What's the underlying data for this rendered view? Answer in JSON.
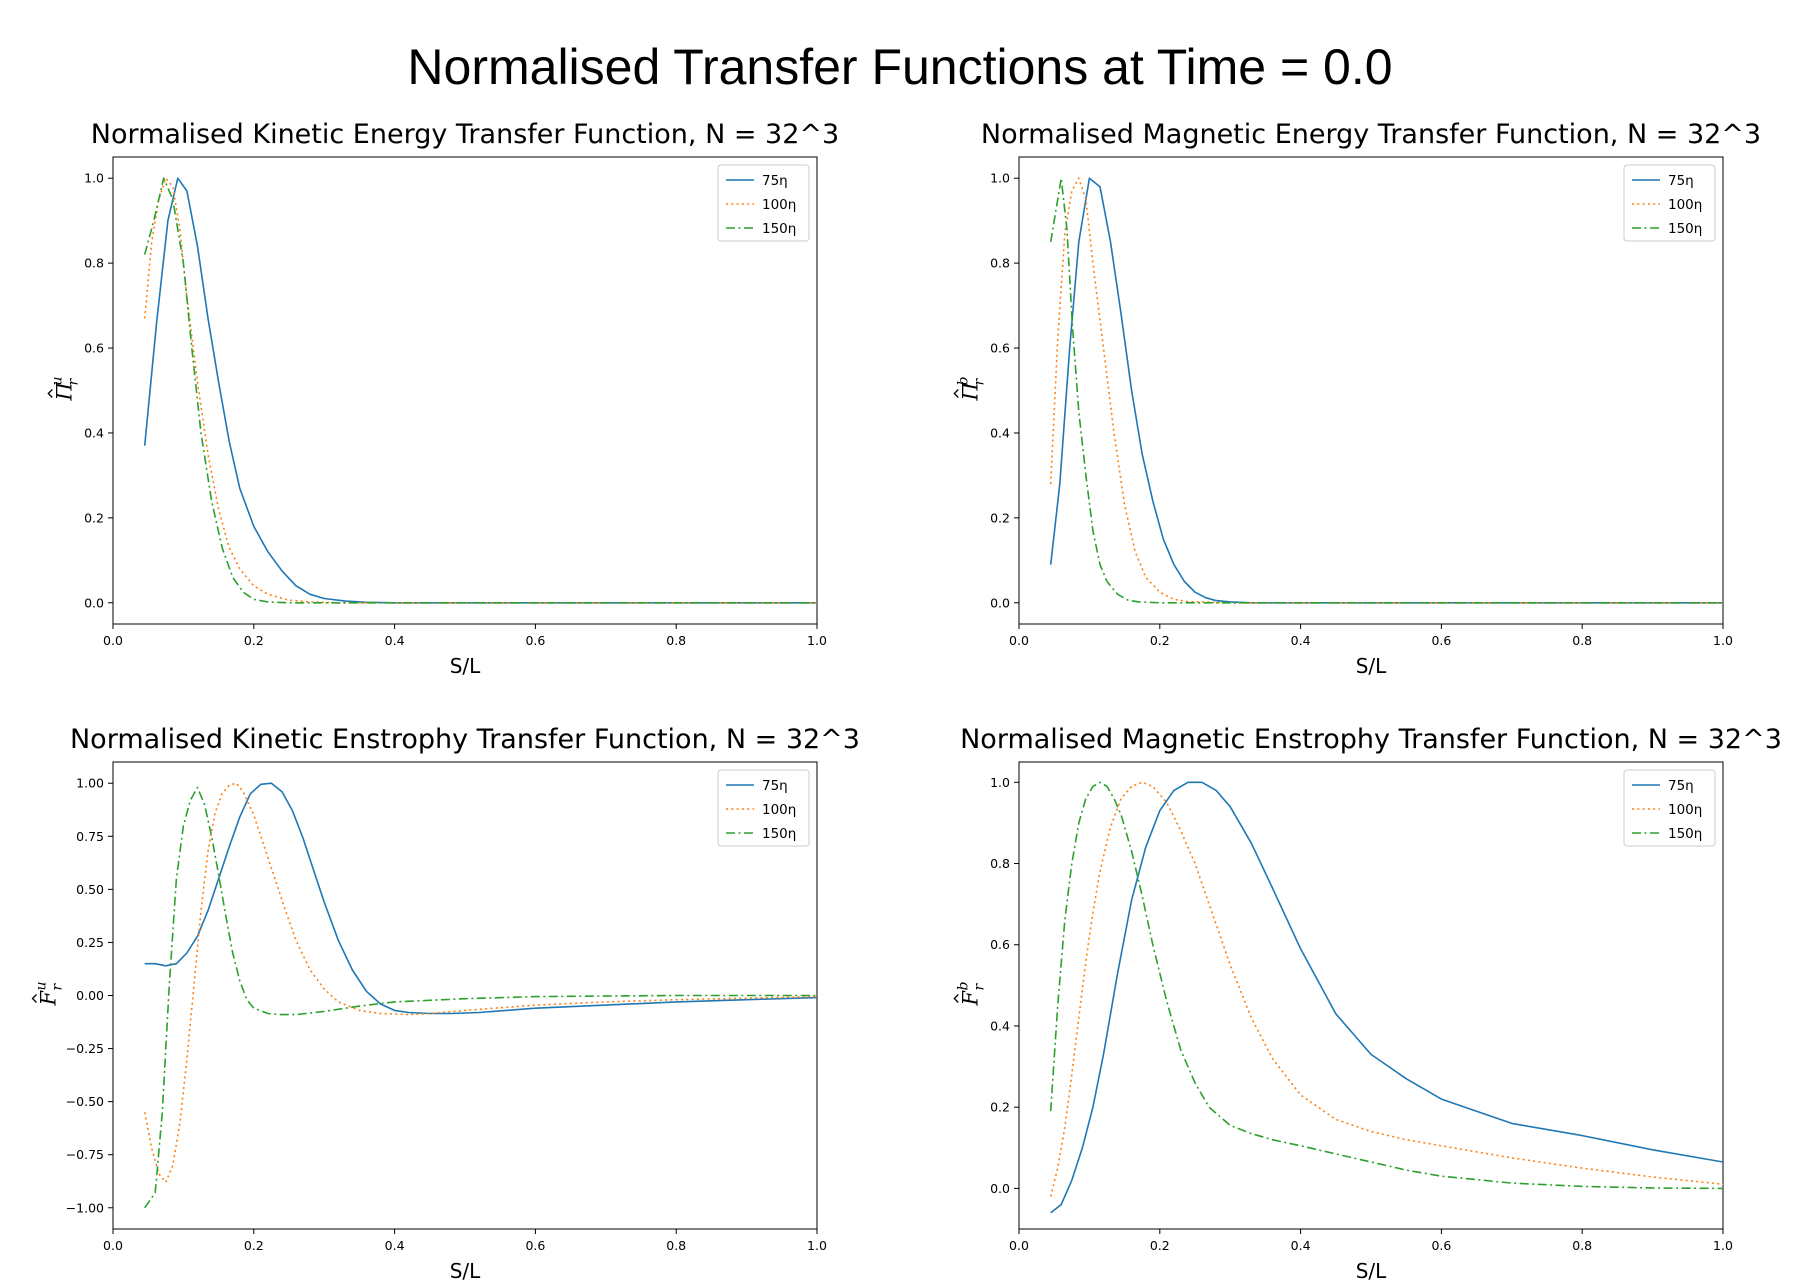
{
  "suptitle": "Normalised Transfer Functions at Time = 0.0",
  "colors": {
    "75η": "#1f77b4",
    "100η": "#ff7f0e",
    "150η": "#2ca02c"
  },
  "chart_data": [
    {
      "type": "line",
      "title": "Normalised Kinetic Energy Transfer Function, N = 32^3",
      "xlabel": "S/L",
      "ylabel": {
        "base": "Π",
        "hat": true,
        "sub": "r",
        "sup": "u"
      },
      "xlim": [
        0.0,
        1.0
      ],
      "ylim": [
        -0.05,
        1.05
      ],
      "xticks": [
        "0.0",
        "0.2",
        "0.4",
        "0.6",
        "0.8",
        "1.0"
      ],
      "yticks": [
        "0.0",
        "0.2",
        "0.4",
        "0.6",
        "0.8",
        "1.0"
      ],
      "legend": "top-right",
      "series": [
        {
          "name": "75η",
          "style": "solid",
          "x": [
            0.045,
            0.062,
            0.078,
            0.092,
            0.105,
            0.12,
            0.135,
            0.15,
            0.165,
            0.18,
            0.2,
            0.22,
            0.24,
            0.26,
            0.28,
            0.3,
            0.33,
            0.36,
            0.4,
            0.5,
            0.6,
            0.8,
            1.0
          ],
          "y": [
            0.37,
            0.66,
            0.9,
            1.0,
            0.97,
            0.84,
            0.67,
            0.52,
            0.38,
            0.27,
            0.18,
            0.12,
            0.075,
            0.04,
            0.02,
            0.01,
            0.004,
            0.001,
            0.0,
            0.0,
            0.0,
            0.0,
            0.0
          ]
        },
        {
          "name": "100η",
          "style": "dotted",
          "x": [
            0.045,
            0.055,
            0.065,
            0.075,
            0.085,
            0.095,
            0.105,
            0.12,
            0.135,
            0.15,
            0.165,
            0.18,
            0.2,
            0.22,
            0.25,
            0.28,
            0.32,
            0.4,
            0.6,
            1.0
          ],
          "y": [
            0.67,
            0.85,
            0.95,
            1.0,
            0.98,
            0.88,
            0.72,
            0.52,
            0.35,
            0.22,
            0.13,
            0.08,
            0.04,
            0.02,
            0.006,
            0.002,
            0.0,
            0.0,
            0.0,
            0.0
          ]
        },
        {
          "name": "150η",
          "style": "dashdot",
          "x": [
            0.045,
            0.058,
            0.072,
            0.085,
            0.1,
            0.112,
            0.125,
            0.14,
            0.155,
            0.17,
            0.185,
            0.2,
            0.22,
            0.25,
            0.3,
            0.4,
            0.6,
            1.0
          ],
          "y": [
            0.82,
            0.9,
            1.0,
            0.95,
            0.8,
            0.6,
            0.4,
            0.24,
            0.13,
            0.06,
            0.025,
            0.008,
            0.002,
            0.0,
            0.0,
            0.0,
            0.0,
            0.0
          ]
        }
      ]
    },
    {
      "type": "line",
      "title": "Normalised Magnetic Energy Transfer Function, N = 32^3",
      "xlabel": "S/L",
      "ylabel": {
        "base": "Π",
        "hat": true,
        "sub": "r",
        "sup": "b"
      },
      "xlim": [
        0.0,
        1.0
      ],
      "ylim": [
        -0.05,
        1.05
      ],
      "xticks": [
        "0.0",
        "0.2",
        "0.4",
        "0.6",
        "0.8",
        "1.0"
      ],
      "yticks": [
        "0.0",
        "0.2",
        "0.4",
        "0.6",
        "0.8",
        "1.0"
      ],
      "legend": "top-right",
      "series": [
        {
          "name": "75η",
          "style": "solid",
          "x": [
            0.045,
            0.058,
            0.072,
            0.085,
            0.1,
            0.115,
            0.13,
            0.145,
            0.16,
            0.175,
            0.19,
            0.205,
            0.22,
            0.235,
            0.25,
            0.265,
            0.28,
            0.3,
            0.33,
            0.4,
            0.6,
            1.0
          ],
          "y": [
            0.09,
            0.28,
            0.6,
            0.85,
            1.0,
            0.98,
            0.85,
            0.68,
            0.5,
            0.35,
            0.24,
            0.15,
            0.09,
            0.05,
            0.025,
            0.012,
            0.005,
            0.002,
            0.0,
            0.0,
            0.0,
            0.0
          ]
        },
        {
          "name": "100η",
          "style": "dotted",
          "x": [
            0.045,
            0.055,
            0.065,
            0.075,
            0.085,
            0.095,
            0.105,
            0.12,
            0.135,
            0.15,
            0.165,
            0.18,
            0.2,
            0.22,
            0.24,
            0.3,
            0.6,
            1.0
          ],
          "y": [
            0.28,
            0.62,
            0.87,
            0.97,
            1.0,
            0.95,
            0.8,
            0.6,
            0.4,
            0.23,
            0.12,
            0.06,
            0.025,
            0.008,
            0.003,
            0.0,
            0.0,
            0.0
          ]
        },
        {
          "name": "150η",
          "style": "dashdot",
          "x": [
            0.045,
            0.052,
            0.06,
            0.068,
            0.076,
            0.085,
            0.095,
            0.105,
            0.115,
            0.125,
            0.14,
            0.155,
            0.17,
            0.2,
            0.3,
            0.6,
            1.0
          ],
          "y": [
            0.85,
            0.92,
            1.0,
            0.88,
            0.65,
            0.45,
            0.3,
            0.17,
            0.09,
            0.05,
            0.02,
            0.006,
            0.002,
            0.0,
            0.0,
            0.0,
            0.0
          ]
        }
      ]
    },
    {
      "type": "line",
      "title": "Normalised Kinetic Enstrophy Transfer Function, N = 32^3",
      "xlabel": "S/L",
      "ylabel": {
        "base": "F",
        "hat": true,
        "sub": "r",
        "sup": "u"
      },
      "xlim": [
        0.0,
        1.0
      ],
      "ylim": [
        -1.1,
        1.1
      ],
      "xticks": [
        "0.0",
        "0.2",
        "0.4",
        "0.6",
        "0.8",
        "1.0"
      ],
      "yticks": [
        "−1.00",
        "−0.75",
        "−0.50",
        "−0.25",
        "0.00",
        "0.25",
        "0.50",
        "0.75",
        "1.00"
      ],
      "ytickvals": [
        -1.0,
        -0.75,
        -0.5,
        -0.25,
        0.0,
        0.25,
        0.5,
        0.75,
        1.0
      ],
      "legend": "top-right",
      "series": [
        {
          "name": "75η",
          "style": "solid",
          "x": [
            0.045,
            0.06,
            0.075,
            0.09,
            0.105,
            0.12,
            0.135,
            0.15,
            0.165,
            0.18,
            0.195,
            0.21,
            0.225,
            0.24,
            0.255,
            0.27,
            0.285,
            0.3,
            0.32,
            0.34,
            0.36,
            0.38,
            0.4,
            0.42,
            0.45,
            0.48,
            0.52,
            0.6,
            0.7,
            0.8,
            0.9,
            1.0
          ],
          "y": [
            0.15,
            0.15,
            0.14,
            0.15,
            0.2,
            0.28,
            0.4,
            0.55,
            0.7,
            0.84,
            0.95,
            0.995,
            1.0,
            0.96,
            0.87,
            0.74,
            0.59,
            0.44,
            0.26,
            0.12,
            0.02,
            -0.04,
            -0.07,
            -0.08,
            -0.085,
            -0.085,
            -0.08,
            -0.06,
            -0.045,
            -0.03,
            -0.02,
            -0.01
          ]
        },
        {
          "name": "100η",
          "style": "dotted",
          "x": [
            0.045,
            0.055,
            0.065,
            0.075,
            0.085,
            0.095,
            0.105,
            0.115,
            0.125,
            0.135,
            0.145,
            0.155,
            0.165,
            0.175,
            0.185,
            0.2,
            0.215,
            0.23,
            0.245,
            0.26,
            0.28,
            0.3,
            0.32,
            0.35,
            0.38,
            0.42,
            0.45,
            0.5,
            0.6,
            0.7,
            0.8,
            1.0
          ],
          "y": [
            -0.55,
            -0.72,
            -0.84,
            -0.88,
            -0.8,
            -0.6,
            -0.3,
            0.05,
            0.4,
            0.68,
            0.86,
            0.95,
            0.99,
            1.0,
            0.96,
            0.85,
            0.7,
            0.55,
            0.4,
            0.26,
            0.12,
            0.03,
            -0.03,
            -0.07,
            -0.085,
            -0.09,
            -0.085,
            -0.07,
            -0.045,
            -0.03,
            -0.02,
            -0.005
          ]
        },
        {
          "name": "150η",
          "style": "dashdot",
          "x": [
            0.045,
            0.06,
            0.07,
            0.08,
            0.09,
            0.1,
            0.11,
            0.12,
            0.13,
            0.14,
            0.15,
            0.16,
            0.17,
            0.18,
            0.19,
            0.2,
            0.22,
            0.24,
            0.26,
            0.3,
            0.35,
            0.4,
            0.5,
            0.6,
            0.8,
            1.0
          ],
          "y": [
            -1.0,
            -0.93,
            -0.55,
            0.05,
            0.55,
            0.8,
            0.92,
            0.98,
            0.9,
            0.75,
            0.57,
            0.38,
            0.2,
            0.07,
            -0.02,
            -0.06,
            -0.085,
            -0.09,
            -0.09,
            -0.075,
            -0.05,
            -0.03,
            -0.015,
            -0.005,
            0.0,
            0.0
          ]
        }
      ]
    },
    {
      "type": "line",
      "title": "Normalised Magnetic Enstrophy Transfer Function, N = 32^3",
      "xlabel": "S/L",
      "ylabel": {
        "base": "F",
        "hat": true,
        "sub": "r",
        "sup": "b"
      },
      "xlim": [
        0.0,
        1.0
      ],
      "ylim": [
        -0.1,
        1.05
      ],
      "xticks": [
        "0.0",
        "0.2",
        "0.4",
        "0.6",
        "0.8",
        "1.0"
      ],
      "yticks": [
        "0.0",
        "0.2",
        "0.4",
        "0.6",
        "0.8",
        "1.0"
      ],
      "legend": "top-right",
      "series": [
        {
          "name": "75η",
          "style": "solid",
          "x": [
            0.045,
            0.06,
            0.075,
            0.09,
            0.105,
            0.12,
            0.14,
            0.16,
            0.18,
            0.2,
            0.22,
            0.24,
            0.26,
            0.28,
            0.3,
            0.33,
            0.36,
            0.4,
            0.45,
            0.5,
            0.55,
            0.6,
            0.65,
            0.7,
            0.8,
            0.9,
            1.0
          ],
          "y": [
            -0.06,
            -0.04,
            0.02,
            0.1,
            0.2,
            0.33,
            0.53,
            0.71,
            0.84,
            0.93,
            0.98,
            1.0,
            1.0,
            0.98,
            0.94,
            0.85,
            0.74,
            0.59,
            0.43,
            0.33,
            0.27,
            0.22,
            0.19,
            0.16,
            0.13,
            0.095,
            0.065
          ]
        },
        {
          "name": "100η",
          "style": "dotted",
          "x": [
            0.045,
            0.055,
            0.065,
            0.075,
            0.085,
            0.095,
            0.105,
            0.115,
            0.13,
            0.145,
            0.16,
            0.175,
            0.19,
            0.21,
            0.23,
            0.25,
            0.27,
            0.3,
            0.33,
            0.36,
            0.4,
            0.45,
            0.5,
            0.55,
            0.6,
            0.7,
            0.8,
            0.9,
            1.0
          ],
          "y": [
            -0.02,
            0.05,
            0.15,
            0.28,
            0.42,
            0.56,
            0.68,
            0.78,
            0.89,
            0.96,
            0.99,
            1.0,
            0.99,
            0.95,
            0.88,
            0.8,
            0.7,
            0.55,
            0.42,
            0.32,
            0.23,
            0.17,
            0.14,
            0.12,
            0.105,
            0.075,
            0.05,
            0.028,
            0.01
          ]
        },
        {
          "name": "150η",
          "style": "dashdot",
          "x": [
            0.045,
            0.055,
            0.065,
            0.075,
            0.085,
            0.095,
            0.105,
            0.115,
            0.125,
            0.135,
            0.145,
            0.16,
            0.175,
            0.19,
            0.21,
            0.23,
            0.25,
            0.27,
            0.3,
            0.33,
            0.36,
            0.4,
            0.45,
            0.5,
            0.55,
            0.6,
            0.7,
            0.8,
            0.9,
            1.0
          ],
          "y": [
            0.19,
            0.45,
            0.66,
            0.8,
            0.9,
            0.96,
            0.99,
            1.0,
            0.99,
            0.96,
            0.92,
            0.83,
            0.72,
            0.6,
            0.46,
            0.34,
            0.26,
            0.2,
            0.155,
            0.135,
            0.12,
            0.105,
            0.085,
            0.065,
            0.045,
            0.03,
            0.013,
            0.005,
            0.001,
            0.0
          ]
        }
      ]
    }
  ]
}
